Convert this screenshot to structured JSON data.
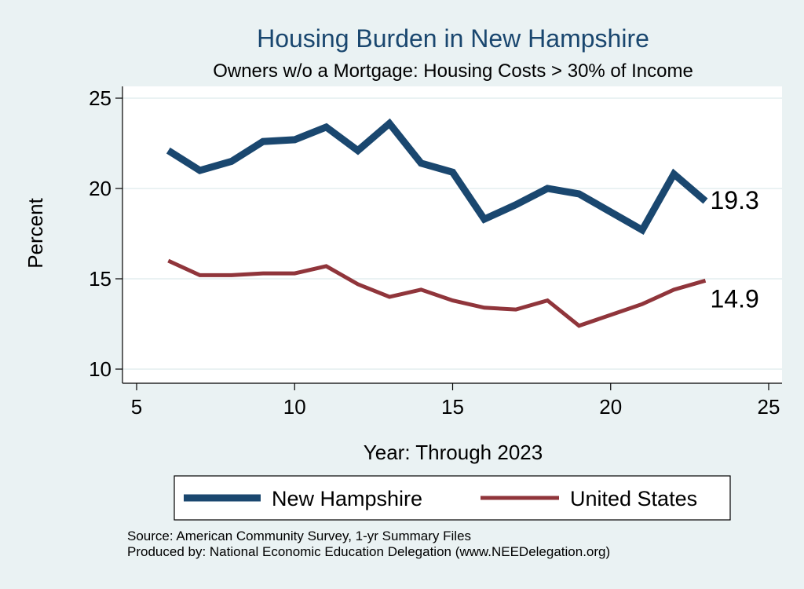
{
  "chart_data": {
    "type": "line",
    "title": "Housing Burden in New Hampshire",
    "subtitle": "Owners w/o a Mortgage: Housing Costs > 30% of Income",
    "xlabel": "Year: Through 2023",
    "ylabel": "Percent",
    "xlim": [
      5,
      25
    ],
    "ylim": [
      10,
      25
    ],
    "xticks": [
      5,
      10,
      15,
      20,
      25
    ],
    "yticks": [
      10,
      15,
      20,
      25
    ],
    "grid": true,
    "legend_position": "bottom",
    "series": [
      {
        "name": "New Hampshire",
        "color": "#1a476f",
        "end_label": "19.3",
        "x": [
          6,
          7,
          8,
          9,
          10,
          11,
          12,
          13,
          14,
          15,
          16,
          17,
          18,
          19,
          21,
          22,
          23
        ],
        "values": [
          22.1,
          21.0,
          21.5,
          22.6,
          22.7,
          23.4,
          22.1,
          23.6,
          21.4,
          20.9,
          18.3,
          19.1,
          20.0,
          19.7,
          17.7,
          20.8,
          19.3
        ]
      },
      {
        "name": "United States",
        "color": "#90353b",
        "end_label": "14.9",
        "x": [
          6,
          7,
          8,
          9,
          10,
          11,
          12,
          13,
          14,
          15,
          16,
          17,
          18,
          19,
          20,
          21,
          22,
          23
        ],
        "values": [
          16.0,
          15.2,
          15.2,
          15.3,
          15.3,
          15.7,
          14.7,
          14.0,
          14.4,
          13.8,
          13.4,
          13.3,
          13.8,
          12.4,
          13.0,
          13.6,
          14.4,
          14.9
        ]
      }
    ],
    "notes": [
      "Source: American Community Survey, 1-yr Summary Files",
      "Produced by: National Economic Education Delegation (www.NEEDelegation.org)"
    ]
  }
}
